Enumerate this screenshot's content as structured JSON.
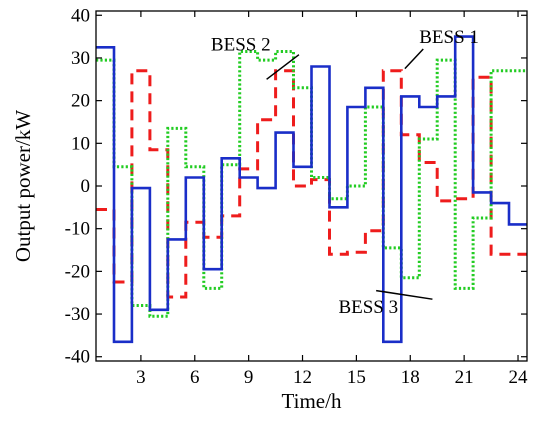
{
  "chart_data": {
    "type": "line",
    "xlabel": "Time/h",
    "ylabel": "Output power/kW",
    "xlim": [
      0.5,
      24.5
    ],
    "ylim": [
      -41,
      41
    ],
    "xticks": [
      3,
      6,
      9,
      12,
      15,
      18,
      21,
      24
    ],
    "yticks": [
      -40,
      -30,
      -20,
      -10,
      0,
      10,
      20,
      30,
      40
    ],
    "grid": false,
    "hours": [
      1,
      2,
      3,
      4,
      5,
      6,
      7,
      8,
      9,
      10,
      11,
      12,
      13,
      14,
      15,
      16,
      17,
      18,
      19,
      20,
      21,
      22,
      23,
      24
    ],
    "series": [
      {
        "name": "BESS 1",
        "color": "#ee1c1c",
        "dash": "dashed",
        "values": [
          -5.5,
          -22.5,
          27,
          8.5,
          -26,
          -8.5,
          -12,
          -7,
          4,
          15.5,
          27,
          0,
          1.5,
          -16,
          -15.5,
          -10.5,
          27,
          12,
          5.5,
          -3.5,
          -3,
          25.5,
          -16,
          -16
        ]
      },
      {
        "name": "BESS 2",
        "color": "#22cc22",
        "dash": "dotted",
        "values": [
          29.5,
          4.5,
          -28,
          -30.5,
          13.5,
          4.5,
          -24,
          5,
          31.5,
          29.5,
          31.5,
          23,
          2,
          -3,
          0,
          18.5,
          -14.5,
          -21.5,
          11,
          29.5,
          -24,
          -7.5,
          27,
          27
        ]
      },
      {
        "name": "BESS 3",
        "color": "#1a2ec8",
        "dash": "solid",
        "values": [
          32.5,
          -36.5,
          -0.5,
          -29,
          -12.5,
          2,
          -19.5,
          6.5,
          2,
          -0.5,
          12.5,
          4.5,
          28,
          -5,
          18.5,
          23,
          -36.5,
          21,
          18.5,
          21,
          35,
          -1.5,
          -4,
          -9
        ]
      }
    ],
    "annotations": [
      {
        "text": "BESS 1",
        "series": "BESS 1",
        "x": 18.5,
        "y": 33.5,
        "point_x": 17.7,
        "point_y": 27.5
      },
      {
        "text": "BESS 2",
        "series": "BESS 2",
        "x": 6.9,
        "y": 31.7,
        "point_x": 10.0,
        "point_y": 25.0
      },
      {
        "text": "BESS 3",
        "series": "BESS 3",
        "x": 14.0,
        "y": -29.8,
        "point_x": 16.1,
        "point_y": -24.5
      }
    ]
  }
}
